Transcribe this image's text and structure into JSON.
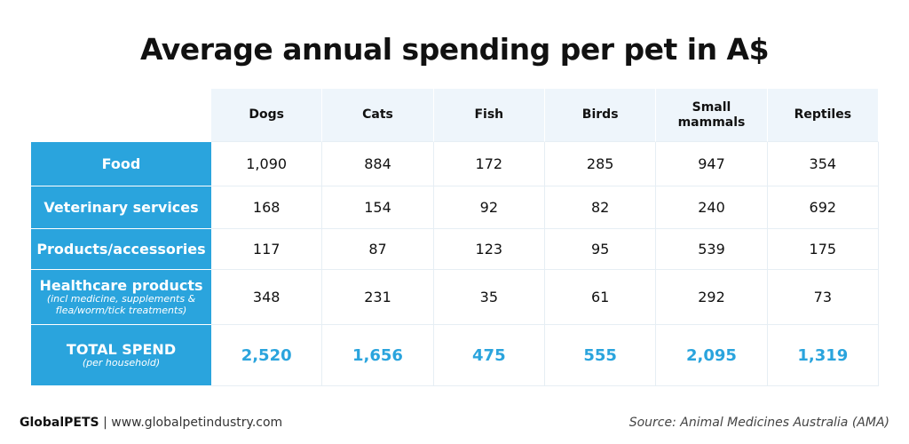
{
  "title": "Average annual spending per pet in A$",
  "table": {
    "columns": [
      "Dogs",
      "Cats",
      "Fish",
      "Birds",
      "Small mammals",
      "Reptiles"
    ],
    "rows": [
      {
        "label": "Food",
        "values": [
          "1,090",
          "884",
          "172",
          "285",
          "947",
          "354"
        ]
      },
      {
        "label": "Veterinary services",
        "values": [
          "168",
          "154",
          "92",
          "82",
          "240",
          "692"
        ]
      },
      {
        "label": "Products/accessories",
        "values": [
          "117",
          "87",
          "123",
          "95",
          "539",
          "175"
        ]
      },
      {
        "label": "Healthcare products",
        "note": "(incl medicine, supplements & flea/worm/tick treatments)",
        "values": [
          "348",
          "231",
          "35",
          "61",
          "292",
          "73"
        ]
      },
      {
        "label": "TOTAL SPEND",
        "note": "(per household)",
        "values": [
          "2,520",
          "1,656",
          "475",
          "555",
          "2,095",
          "1,319"
        ]
      }
    ]
  },
  "footer": {
    "brand": "GlobalPETS",
    "site": "| www.globalpetindustry.com",
    "source": "Source: Animal Medicines Australia (AMA)"
  }
}
